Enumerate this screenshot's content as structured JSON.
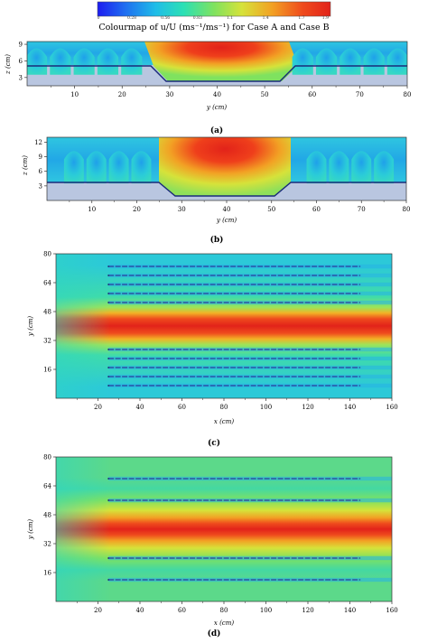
{
  "title": "Colourmap of u/U (ms⁻¹/ms⁻¹) for Case A and Case B",
  "colorbar": {
    "ticks": [
      "0",
      "0.28",
      "0.56",
      "0.83",
      "1.1",
      "1.4",
      "1.7",
      "1.9"
    ],
    "range": [
      0,
      1.95
    ],
    "colors": [
      "#1d1df0",
      "#1f6ff0",
      "#1fbde8",
      "#2be0b4",
      "#7fe25f",
      "#d6e23a",
      "#f2a124",
      "#ef4b1d",
      "#e2231a"
    ]
  },
  "chart_data": [
    {
      "panel": "(a)",
      "type": "heatmap",
      "view": "cross-section",
      "caption": "(a)",
      "xlabel": "y (cm)",
      "ylabel": "z (cm)",
      "xlim": [
        0,
        80
      ],
      "ylim": [
        1.5,
        9.5
      ],
      "xticks": [
        "10",
        "20",
        "30",
        "40",
        "50",
        "60",
        "70",
        "80"
      ],
      "yticks": [
        "3",
        "6",
        "9"
      ],
      "bed_profile": {
        "y": [
          0,
          25,
          29,
          51,
          55,
          80
        ],
        "z": [
          3.5,
          3.5,
          1.7,
          1.7,
          3.5,
          3.5
        ]
      },
      "value_range": [
        0,
        1.9
      ],
      "max_region": {
        "y": [
          30,
          51
        ],
        "z": [
          5,
          9
        ]
      }
    },
    {
      "panel": "(b)",
      "type": "heatmap",
      "view": "cross-section",
      "caption": "(b)",
      "xlabel": "y (cm)",
      "ylabel": "z (cm)",
      "xlim": [
        0,
        80
      ],
      "ylim": [
        0,
        13
      ],
      "xticks": [
        "10",
        "20",
        "30",
        "40",
        "50",
        "60",
        "70",
        "80"
      ],
      "yticks": [
        "3",
        "6",
        "9",
        "12"
      ],
      "bed_profile": {
        "y": [
          0,
          25,
          29,
          51,
          55,
          80
        ],
        "z": [
          3.5,
          3.5,
          0.8,
          0.8,
          3.5,
          3.5
        ]
      },
      "value_range": [
        0,
        1.9
      ],
      "max_region": {
        "y": [
          31,
          50
        ],
        "z": [
          6,
          12
        ]
      }
    },
    {
      "panel": "(c)",
      "type": "heatmap",
      "view": "plan",
      "caption": "(c)",
      "xlabel": "x (cm)",
      "ylabel": "y (cm)",
      "xlim": [
        0,
        160
      ],
      "ylim": [
        0,
        80
      ],
      "xticks": [
        "20",
        "40",
        "60",
        "80",
        "100",
        "120",
        "140",
        "160"
      ],
      "yticks": [
        "16",
        "32",
        "48",
        "64",
        "80"
      ],
      "core": {
        "y": 40,
        "value": 1.9
      },
      "vegetation_rows_y": [
        7,
        12,
        17,
        22,
        27,
        53,
        58,
        63,
        68,
        73
      ],
      "vegetation_x_range": [
        25,
        145
      ]
    },
    {
      "panel": "(d)",
      "type": "heatmap",
      "view": "plan",
      "caption": "(d)",
      "xlabel": "x (cm)",
      "ylabel": "y (cm)",
      "xlim": [
        0,
        160
      ],
      "ylim": [
        0,
        80
      ],
      "xticks": [
        "20",
        "40",
        "60",
        "80",
        "100",
        "120",
        "140",
        "160"
      ],
      "yticks": [
        "16",
        "32",
        "48",
        "64",
        "80"
      ],
      "core": {
        "y": 40,
        "value": 1.9
      },
      "vegetation_rows_y": [
        12,
        24,
        56,
        68
      ],
      "vegetation_x_range": [
        25,
        145
      ]
    }
  ]
}
